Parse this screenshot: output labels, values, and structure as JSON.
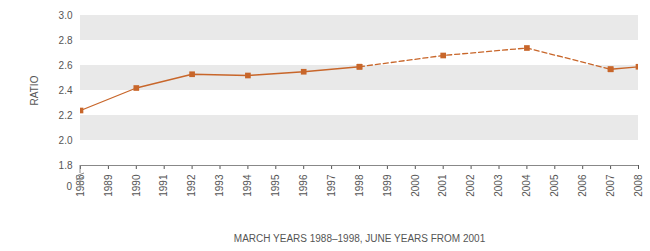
{
  "chart_data": {
    "type": "line",
    "x": [
      1988,
      1990,
      1992,
      1994,
      1996,
      1998,
      2001,
      2004,
      2007,
      2008
    ],
    "series": [
      {
        "values": [
          2.24,
          2.42,
          2.53,
          2.52,
          2.55,
          2.59,
          null,
          null,
          2.57,
          2.59
        ],
        "color": "#c8662a",
        "line_style": "solid",
        "marker": "square"
      },
      {
        "values": [
          null,
          null,
          null,
          null,
          null,
          2.59,
          2.68,
          2.74,
          2.57,
          null
        ],
        "color": "#c8662a",
        "line_style": "dashed",
        "marker": "square"
      }
    ],
    "xlabel": "MARCH YEARS 1988–1998, JUNE YEARS FROM 2001",
    "ylabel": "RATIO",
    "xlim": [
      1988,
      2008
    ],
    "xticks": [
      1988,
      1989,
      1990,
      1991,
      1992,
      1993,
      1994,
      1995,
      1996,
      1997,
      1998,
      1999,
      2000,
      2001,
      2002,
      2003,
      2004,
      2005,
      2006,
      2007,
      2008
    ],
    "ylim": [
      1.8,
      3.0
    ],
    "yticks": [
      1.8,
      {
        "value": 2,
        "label": "2.0"
      },
      2.2,
      2.4,
      2.6,
      2.8,
      {
        "value": 3,
        "label": "3.0"
      }
    ],
    "ybreak": 0,
    "grid": true
  }
}
